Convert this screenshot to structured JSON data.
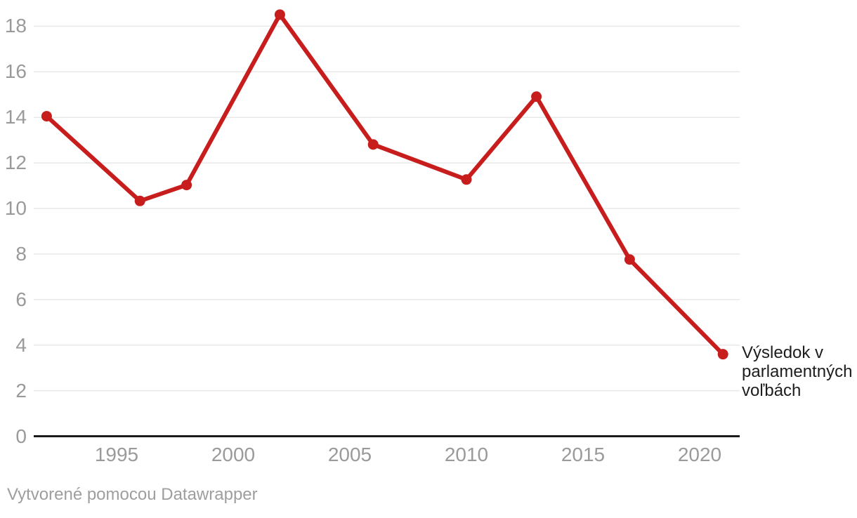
{
  "chart_data": {
    "type": "line",
    "x": [
      1992,
      1996,
      1998,
      2002,
      2006,
      2010,
      2013,
      2017,
      2021
    ],
    "series": [
      {
        "name": "Výsledok v parlamentných voľbách",
        "values": [
          14.05,
          10.33,
          11.03,
          18.51,
          12.81,
          11.27,
          14.91,
          7.76,
          3.6
        ]
      }
    ],
    "title": "",
    "xlabel": "",
    "ylabel": "",
    "x_ticks": [
      1995,
      2000,
      2005,
      2010,
      2015,
      2020
    ],
    "y_ticks": [
      0,
      2,
      4,
      6,
      8,
      10,
      12,
      14,
      16,
      18
    ],
    "xlim": [
      1991.5,
      2021.7
    ],
    "ylim": [
      0,
      19.2
    ],
    "grid": "horizontal",
    "legend_position": "direct-label-at-line-end",
    "direct_label": "Výsledok v parlamentných voľbách"
  },
  "footer": {
    "credit": "Vytvorené pomocou Datawrapper"
  },
  "colors": {
    "line": "#c71e1d",
    "point": "#c71e1d",
    "grid": "#e8e8e8",
    "axis": "#1a1a1a",
    "tick_text": "#9a9a9a",
    "label_text": "#1d1d1d",
    "footer_text": "#9e9e9e",
    "background": "#ffffff"
  }
}
